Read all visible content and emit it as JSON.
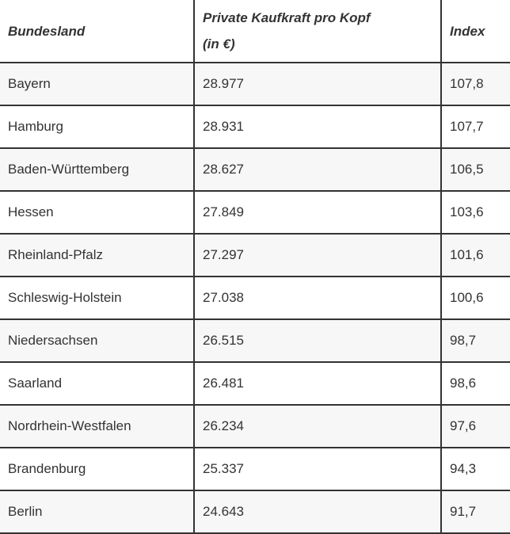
{
  "colors": {
    "border": "#333333",
    "text": "#333333",
    "row_odd_bg": "#f7f7f7",
    "row_even_bg": "#ffffff"
  },
  "header": {
    "col1": "Bundesland",
    "col2_line1": "Private Kaufkraft pro Kopf",
    "col2_line2": "(in €)",
    "col3": "Index"
  },
  "rows": [
    {
      "bundesland": "Bayern",
      "kaufkraft": "28.977",
      "index": "107,8"
    },
    {
      "bundesland": "Hamburg",
      "kaufkraft": "28.931",
      "index": "107,7"
    },
    {
      "bundesland": "Baden-Württemberg",
      "kaufkraft": "28.627",
      "index": "106,5"
    },
    {
      "bundesland": "Hessen",
      "kaufkraft": "27.849",
      "index": "103,6"
    },
    {
      "bundesland": "Rheinland-Pfalz",
      "kaufkraft": "27.297",
      "index": "101,6"
    },
    {
      "bundesland": "Schleswig-Holstein",
      "kaufkraft": "27.038",
      "index": "100,6"
    },
    {
      "bundesland": "Niedersachsen",
      "kaufkraft": "26.515",
      "index": "98,7"
    },
    {
      "bundesland": "Saarland",
      "kaufkraft": "26.481",
      "index": "98,6"
    },
    {
      "bundesland": "Nordrhein-Westfalen",
      "kaufkraft": "26.234",
      "index": "97,6"
    },
    {
      "bundesland": "Brandenburg",
      "kaufkraft": "25.337",
      "index": "94,3"
    },
    {
      "bundesland": "Berlin",
      "kaufkraft": "24.643",
      "index": "91,7"
    }
  ],
  "chart_data": {
    "type": "table",
    "title": "",
    "columns": [
      "Bundesland",
      "Private Kaufkraft pro Kopf (in €)",
      "Index"
    ],
    "rows": [
      [
        "Bayern",
        28977,
        107.8
      ],
      [
        "Hamburg",
        28931,
        107.7
      ],
      [
        "Baden-Württemberg",
        28627,
        106.5
      ],
      [
        "Hessen",
        27849,
        103.6
      ],
      [
        "Rheinland-Pfalz",
        27297,
        101.6
      ],
      [
        "Schleswig-Holstein",
        27038,
        100.6
      ],
      [
        "Niedersachsen",
        26515,
        98.7
      ],
      [
        "Saarland",
        26481,
        98.6
      ],
      [
        "Nordrhein-Westfalen",
        26234,
        97.6
      ],
      [
        "Brandenburg",
        25337,
        94.3
      ],
      [
        "Berlin",
        24643,
        91.7
      ]
    ],
    "layout_hints": {
      "zebra_striping": true,
      "number_format": "de-DE",
      "kaufkraft_unit": "EUR per capita"
    }
  }
}
